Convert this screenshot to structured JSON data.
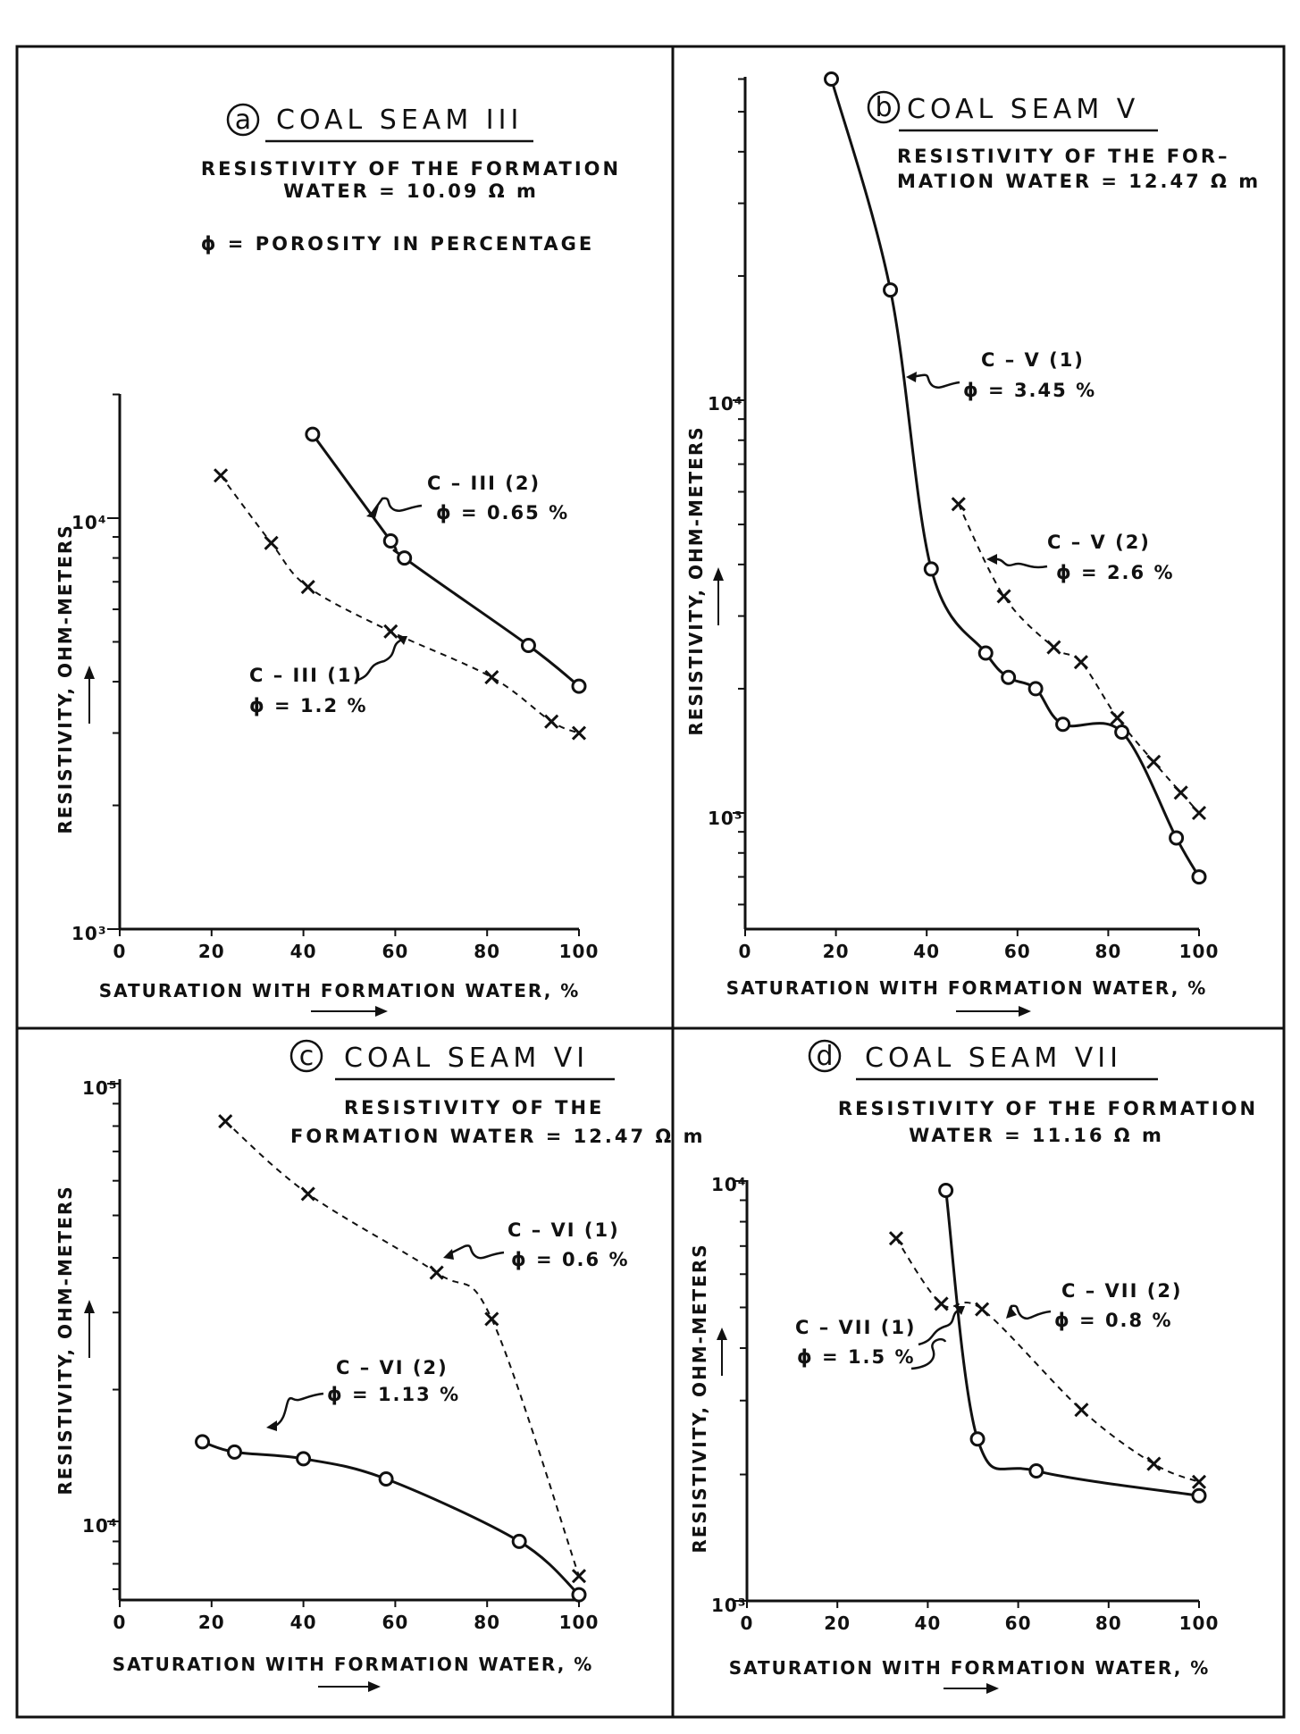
{
  "panels": [
    {
      "letter": "a",
      "title": "COAL SEAM III",
      "notes": [
        "RESISTIVITY OF THE FORMATION",
        "WATER = 10.09 Ω m",
        "ϕ = POROSITY IN PERCENTAGE"
      ],
      "xlabel": "SATURATION WITH FORMATION WATER, %",
      "ylabel": "RESISTIVITY, OHM-METERS",
      "xticks": [
        "0",
        "20",
        "40",
        "60",
        "80",
        "100"
      ],
      "ymin_label": "10³",
      "ymid_label": "10⁴",
      "labels": [
        {
          "lines": [
            "C – III (2)",
            "ϕ = 0.65 %"
          ]
        },
        {
          "lines": [
            "C – III (1)",
            "ϕ = 1.2 %"
          ]
        }
      ]
    },
    {
      "letter": "b",
      "title": "COAL SEAM V",
      "notes": [
        "RESISTIVITY OF THE FOR–",
        "MATION WATER = 12.47 Ω m"
      ],
      "xlabel": "SATURATION WITH FORMATION WATER, %",
      "ylabel": "RESISTIVITY, OHM-METERS",
      "xticks": [
        "0",
        "20",
        "40",
        "60",
        "80",
        "100"
      ],
      "ymin_label": "10³",
      "ymid_label": "10⁴",
      "labels": [
        {
          "lines": [
            "C – V (1)",
            "ϕ = 3.45 %"
          ]
        },
        {
          "lines": [
            "C – V (2)",
            "ϕ = 2.6 %"
          ]
        }
      ]
    },
    {
      "letter": "c",
      "title": "COAL SEAM VI",
      "notes": [
        "RESISTIVITY OF THE",
        "FORMATION WATER = 12.47 Ω m"
      ],
      "xlabel": "SATURATION WITH FORMATION WATER, %",
      "ylabel": "RESISTIVITY, OHM-METERS",
      "xticks": [
        "0",
        "20",
        "40",
        "60",
        "80",
        "100"
      ],
      "ymin_label": "10⁴",
      "ymid_label": "10⁵",
      "labels": [
        {
          "lines": [
            "C – VI (1)",
            "ϕ = 0.6 %"
          ]
        },
        {
          "lines": [
            "C – VI (2)",
            "ϕ = 1.13 %"
          ]
        }
      ]
    },
    {
      "letter": "d",
      "title": "COAL SEAM VII",
      "notes": [
        "RESISTIVITY OF THE FORMATION",
        "WATER = 11.16 Ω m"
      ],
      "xlabel": "SATURATION WITH FORMATION WATER, %",
      "ylabel": "RESISTIVITY, OHM-METERS",
      "xticks": [
        "0",
        "20",
        "40",
        "60",
        "80",
        "100"
      ],
      "ymin_label": "10³",
      "ymid_label": "10⁴",
      "labels": [
        {
          "lines": [
            "C – VII (2)",
            "ϕ = 0.8 %"
          ]
        },
        {
          "lines": [
            "C – VII (1)",
            "ϕ = 1.5 %"
          ]
        }
      ]
    }
  ],
  "chart_data": [
    {
      "type": "line",
      "title": "COAL SEAM III",
      "xlabel": "SATURATION WITH FORMATION WATER, %",
      "ylabel": "RESISTIVITY, OHM-METERS",
      "xlim": [
        0,
        100
      ],
      "ylim": [
        1000,
        20000
      ],
      "yscale": "log",
      "grid": false,
      "series": [
        {
          "name": "C – III (2)",
          "style": "solid",
          "marker": "circle",
          "x": [
            42,
            59,
            62,
            89,
            100
          ],
          "y": [
            16000,
            8800,
            8000,
            4900,
            3900
          ]
        },
        {
          "name": "C – III (1)",
          "style": "dashed",
          "marker": "x",
          "x": [
            22,
            33,
            41,
            59,
            81,
            94,
            100
          ],
          "y": [
            12700,
            8700,
            6800,
            5300,
            4100,
            3200,
            3000
          ]
        }
      ]
    },
    {
      "type": "line",
      "title": "COAL SEAM V",
      "xlabel": "SATURATION WITH FORMATION WATER, %",
      "ylabel": "RESISTIVITY, OHM-METERS",
      "xlim": [
        0,
        100
      ],
      "ylim": [
        500,
        80000
      ],
      "yscale": "log",
      "grid": false,
      "series": [
        {
          "name": "C – V (1)",
          "style": "solid",
          "marker": "circle",
          "x": [
            19,
            32,
            41,
            53,
            58,
            64,
            70,
            83,
            95,
            100
          ],
          "y": [
            60000,
            18500,
            3900,
            2440,
            2130,
            2000,
            1640,
            1570,
            870,
            700
          ]
        },
        {
          "name": "C – V (2)",
          "style": "dashed",
          "marker": "x",
          "x": [
            47,
            57,
            68,
            74,
            82,
            90,
            96,
            100
          ],
          "y": [
            5600,
            3350,
            2520,
            2320,
            1700,
            1330,
            1120,
            1000
          ]
        }
      ]
    },
    {
      "type": "line",
      "title": "COAL SEAM VI",
      "xlabel": "SATURATION WITH FORMATION WATER, %",
      "ylabel": "RESISTIVITY, OHM-METERS",
      "xlim": [
        0,
        100
      ],
      "ylim": [
        5000,
        100000
      ],
      "yscale": "log",
      "grid": false,
      "series": [
        {
          "name": "C – VI (1)",
          "style": "dashed",
          "marker": "x",
          "x": [
            23,
            41,
            69,
            81,
            100
          ],
          "y": [
            82000,
            56000,
            37000,
            29000,
            7500
          ]
        },
        {
          "name": "C – VI (2)",
          "style": "solid",
          "marker": "circle",
          "x": [
            18,
            25,
            40,
            58,
            87,
            100
          ],
          "y": [
            15200,
            14400,
            13900,
            12500,
            9000,
            6800
          ]
        }
      ]
    },
    {
      "type": "line",
      "title": "COAL SEAM VII",
      "xlabel": "SATURATION WITH FORMATION WATER, %",
      "ylabel": "RESISTIVITY, OHM-METERS",
      "xlim": [
        0,
        100
      ],
      "ylim": [
        1000,
        10000
      ],
      "yscale": "log",
      "grid": false,
      "series": [
        {
          "name": "C – VII (1)",
          "style": "solid",
          "marker": "circle",
          "x": [
            44,
            51,
            64,
            100
          ],
          "y": [
            9500,
            2430,
            2040,
            1780
          ]
        },
        {
          "name": "C – VII (2)",
          "style": "dashed",
          "marker": "x",
          "x": [
            33,
            43,
            52,
            74,
            90,
            100
          ],
          "y": [
            7300,
            5100,
            4950,
            2850,
            2120,
            1920
          ]
        }
      ]
    }
  ]
}
